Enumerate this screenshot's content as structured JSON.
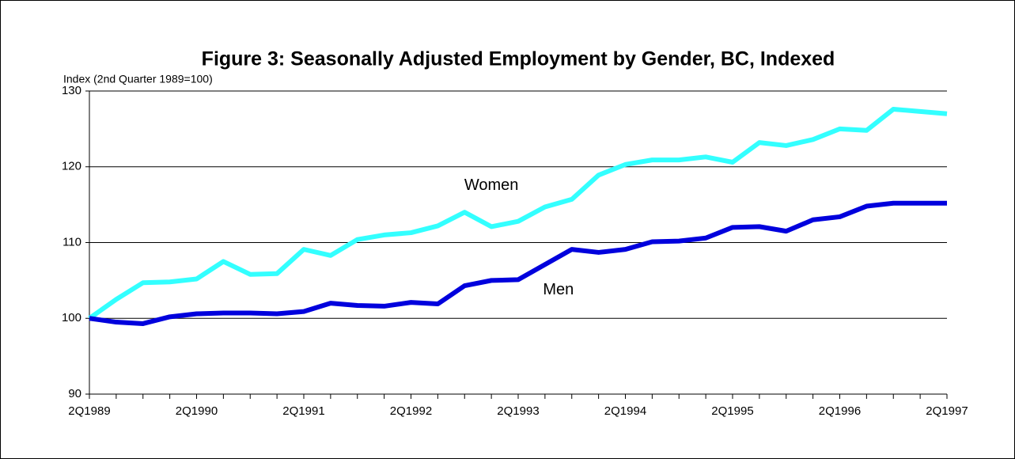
{
  "chart_data": {
    "type": "line",
    "title": "Figure 3: Seasonally Adjusted Employment by Gender, BC, Indexed",
    "y_axis_label": "Index (2nd Quarter 1989=100)",
    "categories": [
      "2Q1989",
      null,
      null,
      null,
      "2Q1990",
      null,
      null,
      null,
      "2Q1991",
      null,
      null,
      null,
      "2Q1992",
      null,
      null,
      null,
      "2Q1993",
      null,
      null,
      null,
      "2Q1994",
      null,
      null,
      null,
      "2Q1995",
      null,
      null,
      null,
      "2Q1996",
      null,
      null,
      null,
      "2Q1997"
    ],
    "series": [
      {
        "name": "Women",
        "color": "#33ffff",
        "values": [
          100,
          102.5,
          104.7,
          104.8,
          105.2,
          107.5,
          105.8,
          105.9,
          109.1,
          108.3,
          110.4,
          111.0,
          111.3,
          112.2,
          114.0,
          112.1,
          112.8,
          114.7,
          115.7,
          118.9,
          120.3,
          120.9,
          120.9,
          121.3,
          120.6,
          123.2,
          122.8,
          123.6,
          125.0,
          124.8,
          127.6,
          127.3,
          127.0
        ]
      },
      {
        "name": "Men",
        "color": "#0000dd",
        "values": [
          100,
          99.5,
          99.3,
          100.2,
          100.6,
          100.7,
          100.7,
          100.6,
          100.9,
          102.0,
          101.7,
          101.6,
          102.1,
          101.9,
          104.3,
          105.0,
          105.1,
          107.1,
          109.1,
          108.7,
          109.1,
          110.1,
          110.2,
          110.6,
          112.0,
          112.1,
          111.5,
          113.0,
          113.4,
          114.8,
          115.2,
          115.2,
          115.2
        ]
      }
    ],
    "ylim": [
      90,
      130
    ],
    "yticks": [
      90,
      100,
      110,
      120,
      130
    ],
    "grid": true
  }
}
